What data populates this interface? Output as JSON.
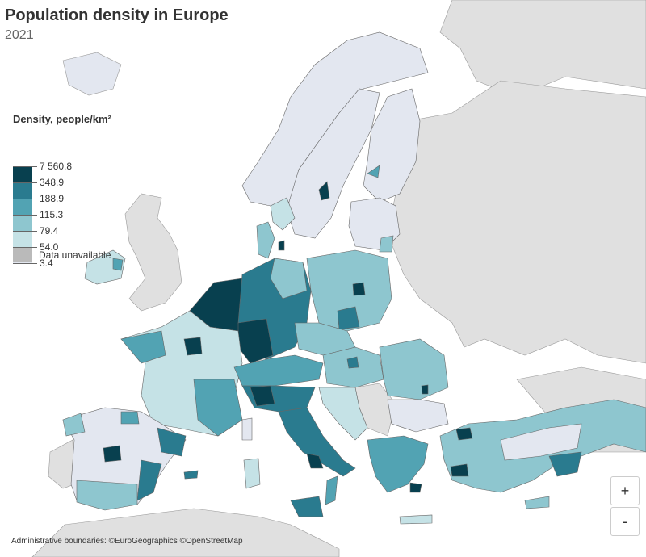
{
  "title": "Population density in Europe",
  "subtitle": "2021",
  "legend": {
    "title": "Density, people/km²",
    "classes": [
      {
        "label": "7 560.8",
        "color": "#08404f"
      },
      {
        "label": "348.9",
        "color": "#2a7b8f"
      },
      {
        "label": "188.9",
        "color": "#52a3b3"
      },
      {
        "label": "115.3",
        "color": "#8ec6cf"
      },
      {
        "label": "79.4",
        "color": "#c5e2e6"
      },
      {
        "label": "54.0",
        "color": "#e3e7f0"
      },
      {
        "label": "3.4",
        "color": "#e3e7f0"
      }
    ],
    "unavailable_label": "Data unavailable",
    "unavailable_color": "#bababa"
  },
  "attribution": "Administrative boundaries: ©EuroGeographics ©OpenStreetMap",
  "zoom_in_label": "+",
  "zoom_out_label": "-",
  "colors": {
    "sea": "#ffffff",
    "non_covered_land": "#e0e0e0",
    "boundary": "#555555"
  }
}
